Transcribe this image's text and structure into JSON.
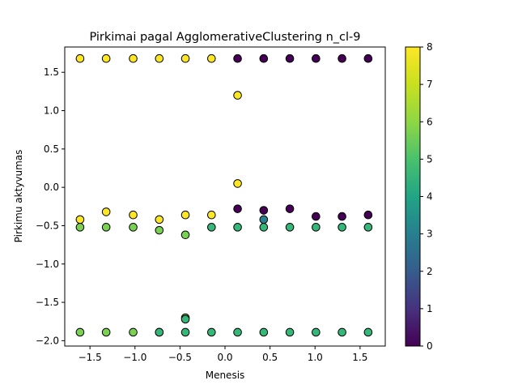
{
  "chart_data": {
    "type": "scatter",
    "title": "Pirkimai pagal AgglomerativeClustering n_cl-9",
    "xlabel": "Menesis",
    "ylabel": "Pirkimu aktyvumas",
    "xlim": [
      -1.78,
      1.78
    ],
    "ylim": [
      -2.07,
      1.83
    ],
    "xticks": [
      -1.5,
      -1.0,
      -0.5,
      0.0,
      0.5,
      1.0,
      1.5
    ],
    "xtick_labels": [
      "−1.5",
      "−1.0",
      "−0.5",
      "0.0",
      "0.5",
      "1.0",
      "1.5"
    ],
    "yticks": [
      -2.0,
      -1.5,
      -1.0,
      -0.5,
      0.0,
      0.5,
      1.0,
      1.5
    ],
    "ytick_labels": [
      "−2.0",
      "−1.5",
      "−1.0",
      "−0.5",
      "0.0",
      "0.5",
      "1.0",
      "1.5"
    ],
    "grid": false,
    "colormap": "viridis",
    "colorbar": {
      "min": 0,
      "max": 8,
      "ticks": [
        0,
        1,
        2,
        3,
        4,
        5,
        6,
        7,
        8
      ],
      "tick_labels": [
        "0",
        "1",
        "2",
        "3",
        "4",
        "5",
        "6",
        "7",
        "8"
      ]
    },
    "colors": {
      "cluster_0": "#440154",
      "cluster_3": "#31688e",
      "cluster_4": "#26828e",
      "cluster_6": "#35b779",
      "cluster_7": "#7ad151",
      "cluster_8": "#fde725",
      "edge": "#000000"
    },
    "x_columns": [
      -1.61,
      -1.32,
      -1.02,
      -0.73,
      -0.44,
      -0.15,
      0.14,
      0.43,
      0.72,
      1.01,
      1.3,
      1.59
    ],
    "y_top": 1.68,
    "y_bottom": -1.89,
    "series": [
      {
        "cluster": 8,
        "points": [
          [
            -1.61,
            1.68
          ],
          [
            -1.61,
            -0.42
          ],
          [
            -1.32,
            1.68
          ],
          [
            -1.32,
            -0.32
          ],
          [
            -1.02,
            1.68
          ],
          [
            -1.02,
            -0.36
          ],
          [
            -0.73,
            1.68
          ],
          [
            -0.73,
            -0.42
          ],
          [
            -0.44,
            1.68
          ],
          [
            -0.44,
            -0.36
          ],
          [
            -0.15,
            1.68
          ],
          [
            -0.15,
            -0.36
          ],
          [
            0.14,
            1.2
          ],
          [
            0.14,
            0.05
          ]
        ]
      },
      {
        "cluster": 0,
        "points": [
          [
            0.14,
            1.68
          ],
          [
            0.14,
            -0.28
          ],
          [
            0.43,
            1.68
          ],
          [
            0.43,
            -0.3
          ],
          [
            0.72,
            1.68
          ],
          [
            0.72,
            -0.28
          ],
          [
            1.01,
            1.68
          ],
          [
            1.01,
            -0.38
          ],
          [
            1.3,
            1.68
          ],
          [
            1.3,
            -0.38
          ],
          [
            1.59,
            1.68
          ],
          [
            1.59,
            -0.36
          ]
        ]
      },
      {
        "cluster": 4,
        "points": [
          [
            0.43,
            -0.42
          ]
        ]
      },
      {
        "cluster": 7,
        "points": [
          [
            -1.61,
            -0.52
          ],
          [
            -1.61,
            -1.89
          ],
          [
            -1.32,
            -0.52
          ],
          [
            -1.32,
            -1.89
          ],
          [
            -1.02,
            -0.52
          ],
          [
            -1.02,
            -1.89
          ],
          [
            -0.73,
            -0.56
          ],
          [
            -0.73,
            -1.89
          ],
          [
            -0.44,
            -0.62
          ],
          [
            -0.44,
            -1.7
          ]
        ]
      },
      {
        "cluster": 6,
        "points": [
          [
            -0.73,
            -1.89
          ],
          [
            -0.44,
            -1.72
          ],
          [
            -0.44,
            -1.89
          ],
          [
            -0.15,
            -0.52
          ],
          [
            -0.15,
            -1.89
          ],
          [
            0.14,
            -0.52
          ],
          [
            0.14,
            -1.89
          ],
          [
            0.43,
            -0.52
          ],
          [
            0.43,
            -1.89
          ],
          [
            0.72,
            -0.52
          ],
          [
            0.72,
            -1.89
          ],
          [
            1.01,
            -0.52
          ],
          [
            1.01,
            -1.89
          ],
          [
            1.3,
            -0.52
          ],
          [
            1.3,
            -1.89
          ],
          [
            1.59,
            -0.52
          ],
          [
            1.59,
            -1.89
          ]
        ]
      }
    ]
  }
}
